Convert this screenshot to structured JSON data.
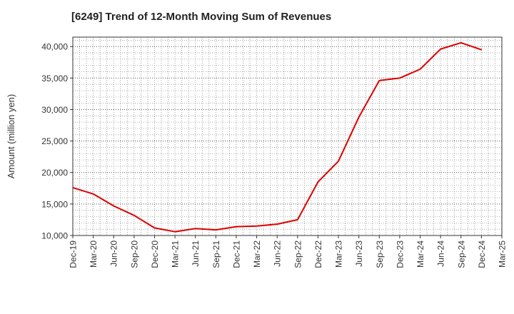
{
  "chart_data": {
    "type": "line",
    "title": "[6249]  Trend of 12-Month Moving Sum of Revenues",
    "xlabel": "",
    "ylabel": "Amount (million yen)",
    "ylim": [
      10000,
      41500
    ],
    "yticks": [
      10000,
      15000,
      20000,
      25000,
      30000,
      35000,
      40000
    ],
    "ytick_labels": [
      "10,000",
      "15,000",
      "20,000",
      "25,000",
      "30,000",
      "35,000",
      "40,000"
    ],
    "xtick_labels": [
      "Dec-19",
      "Mar-20",
      "Jun-20",
      "Sep-20",
      "Dec-20",
      "Mar-21",
      "Jun-21",
      "Sep-21",
      "Dec-21",
      "Mar-22",
      "Jun-22",
      "Sep-22",
      "Dec-22",
      "Mar-23",
      "Jun-23",
      "Sep-23",
      "Dec-23",
      "Mar-24",
      "Jun-24",
      "Sep-24",
      "Dec-24",
      "Mar-25"
    ],
    "grid": true,
    "line_color": "#dd0000",
    "series": [
      {
        "x": [
          "Dec-19",
          "Mar-20",
          "Jun-20",
          "Sep-20",
          "Dec-20",
          "Mar-21",
          "Jun-21",
          "Sep-21",
          "Dec-21",
          "Mar-22",
          "Jun-22",
          "Sep-22",
          "Dec-22",
          "Mar-23",
          "Jun-23",
          "Sep-23",
          "Dec-23",
          "Mar-24",
          "Jun-24",
          "Sep-24",
          "Dec-24"
        ],
        "values": [
          17600,
          16600,
          14700,
          13200,
          11200,
          10600,
          11100,
          10900,
          11400,
          11500,
          11800,
          12500,
          18500,
          21800,
          28800,
          34600,
          35000,
          36400,
          39600,
          40600,
          39500
        ]
      }
    ]
  }
}
